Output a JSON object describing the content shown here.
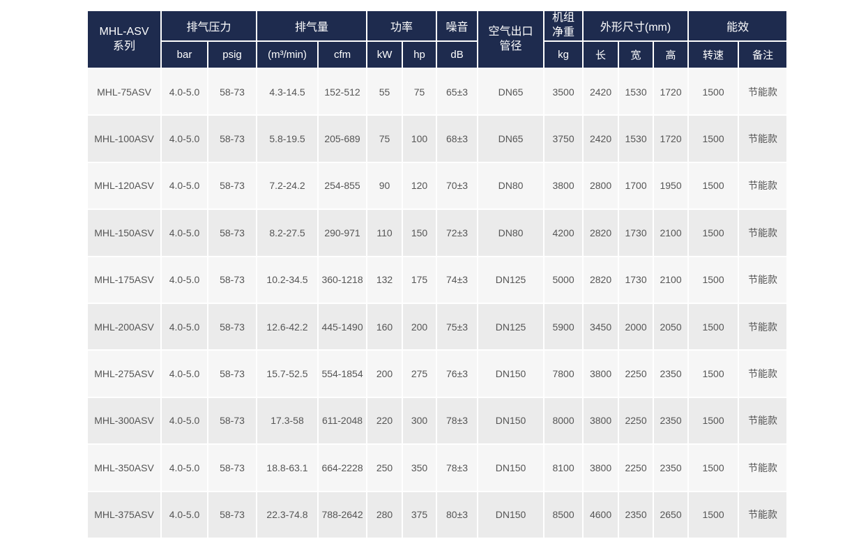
{
  "colors": {
    "header_bg": "#1e2b4e",
    "header_text": "#ffffff",
    "row_light": "#f6f6f6",
    "row_dark": "#ebebeb",
    "cell_text": "#555555"
  },
  "table": {
    "series": {
      "line1": "MHL-ASV",
      "line2": "系列"
    },
    "groups": {
      "pressure": "排气压力",
      "flow": "排气量",
      "power": "功率",
      "noise": "噪音",
      "outlet_line1": "空气出口",
      "outlet_line2": "管径",
      "weight_line1": "机组",
      "weight_line2": "净重",
      "dimensions": "外形尺寸(mm)",
      "efficiency": "能效"
    },
    "subheaders": {
      "bar": "bar",
      "psig": "psig",
      "m3min": "(m³/min)",
      "cfm": "cfm",
      "kw": "kW",
      "hp": "hp",
      "db": "dB",
      "kg": "kg",
      "length": "长",
      "width": "宽",
      "height": "高",
      "speed": "转速",
      "remark": "备注"
    },
    "rows": [
      [
        "MHL-75ASV",
        "4.0-5.0",
        "58-73",
        "4.3-14.5",
        "152-512",
        "55",
        "75",
        "65±3",
        "DN65",
        "3500",
        "2420",
        "1530",
        "1720",
        "1500",
        "节能款"
      ],
      [
        "MHL-100ASV",
        "4.0-5.0",
        "58-73",
        "5.8-19.5",
        "205-689",
        "75",
        "100",
        "68±3",
        "DN65",
        "3750",
        "2420",
        "1530",
        "1720",
        "1500",
        "节能款"
      ],
      [
        "MHL-120ASV",
        "4.0-5.0",
        "58-73",
        "7.2-24.2",
        "254-855",
        "90",
        "120",
        "70±3",
        "DN80",
        "3800",
        "2800",
        "1700",
        "1950",
        "1500",
        "节能款"
      ],
      [
        "MHL-150ASV",
        "4.0-5.0",
        "58-73",
        "8.2-27.5",
        "290-971",
        "110",
        "150",
        "72±3",
        "DN80",
        "4200",
        "2820",
        "1730",
        "2100",
        "1500",
        "节能款"
      ],
      [
        "MHL-175ASV",
        "4.0-5.0",
        "58-73",
        "10.2-34.5",
        "360-1218",
        "132",
        "175",
        "74±3",
        "DN125",
        "5000",
        "2820",
        "1730",
        "2100",
        "1500",
        "节能款"
      ],
      [
        "MHL-200ASV",
        "4.0-5.0",
        "58-73",
        "12.6-42.2",
        "445-1490",
        "160",
        "200",
        "75±3",
        "DN125",
        "5900",
        "3450",
        "2000",
        "2050",
        "1500",
        "节能款"
      ],
      [
        "MHL-275ASV",
        "4.0-5.0",
        "58-73",
        "15.7-52.5",
        "554-1854",
        "200",
        "275",
        "76±3",
        "DN150",
        "7800",
        "3800",
        "2250",
        "2350",
        "1500",
        "节能款"
      ],
      [
        "MHL-300ASV",
        "4.0-5.0",
        "58-73",
        "17.3-58",
        "611-2048",
        "220",
        "300",
        "78±3",
        "DN150",
        "8000",
        "3800",
        "2250",
        "2350",
        "1500",
        "节能款"
      ],
      [
        "MHL-350ASV",
        "4.0-5.0",
        "58-73",
        "18.8-63.1",
        "664-2228",
        "250",
        "350",
        "78±3",
        "DN150",
        "8100",
        "3800",
        "2250",
        "2350",
        "1500",
        "节能款"
      ],
      [
        "MHL-375ASV",
        "4.0-5.0",
        "58-73",
        "22.3-74.8",
        "788-2642",
        "280",
        "375",
        "80±3",
        "DN150",
        "8500",
        "4600",
        "2350",
        "2650",
        "1500",
        "节能款"
      ]
    ]
  }
}
